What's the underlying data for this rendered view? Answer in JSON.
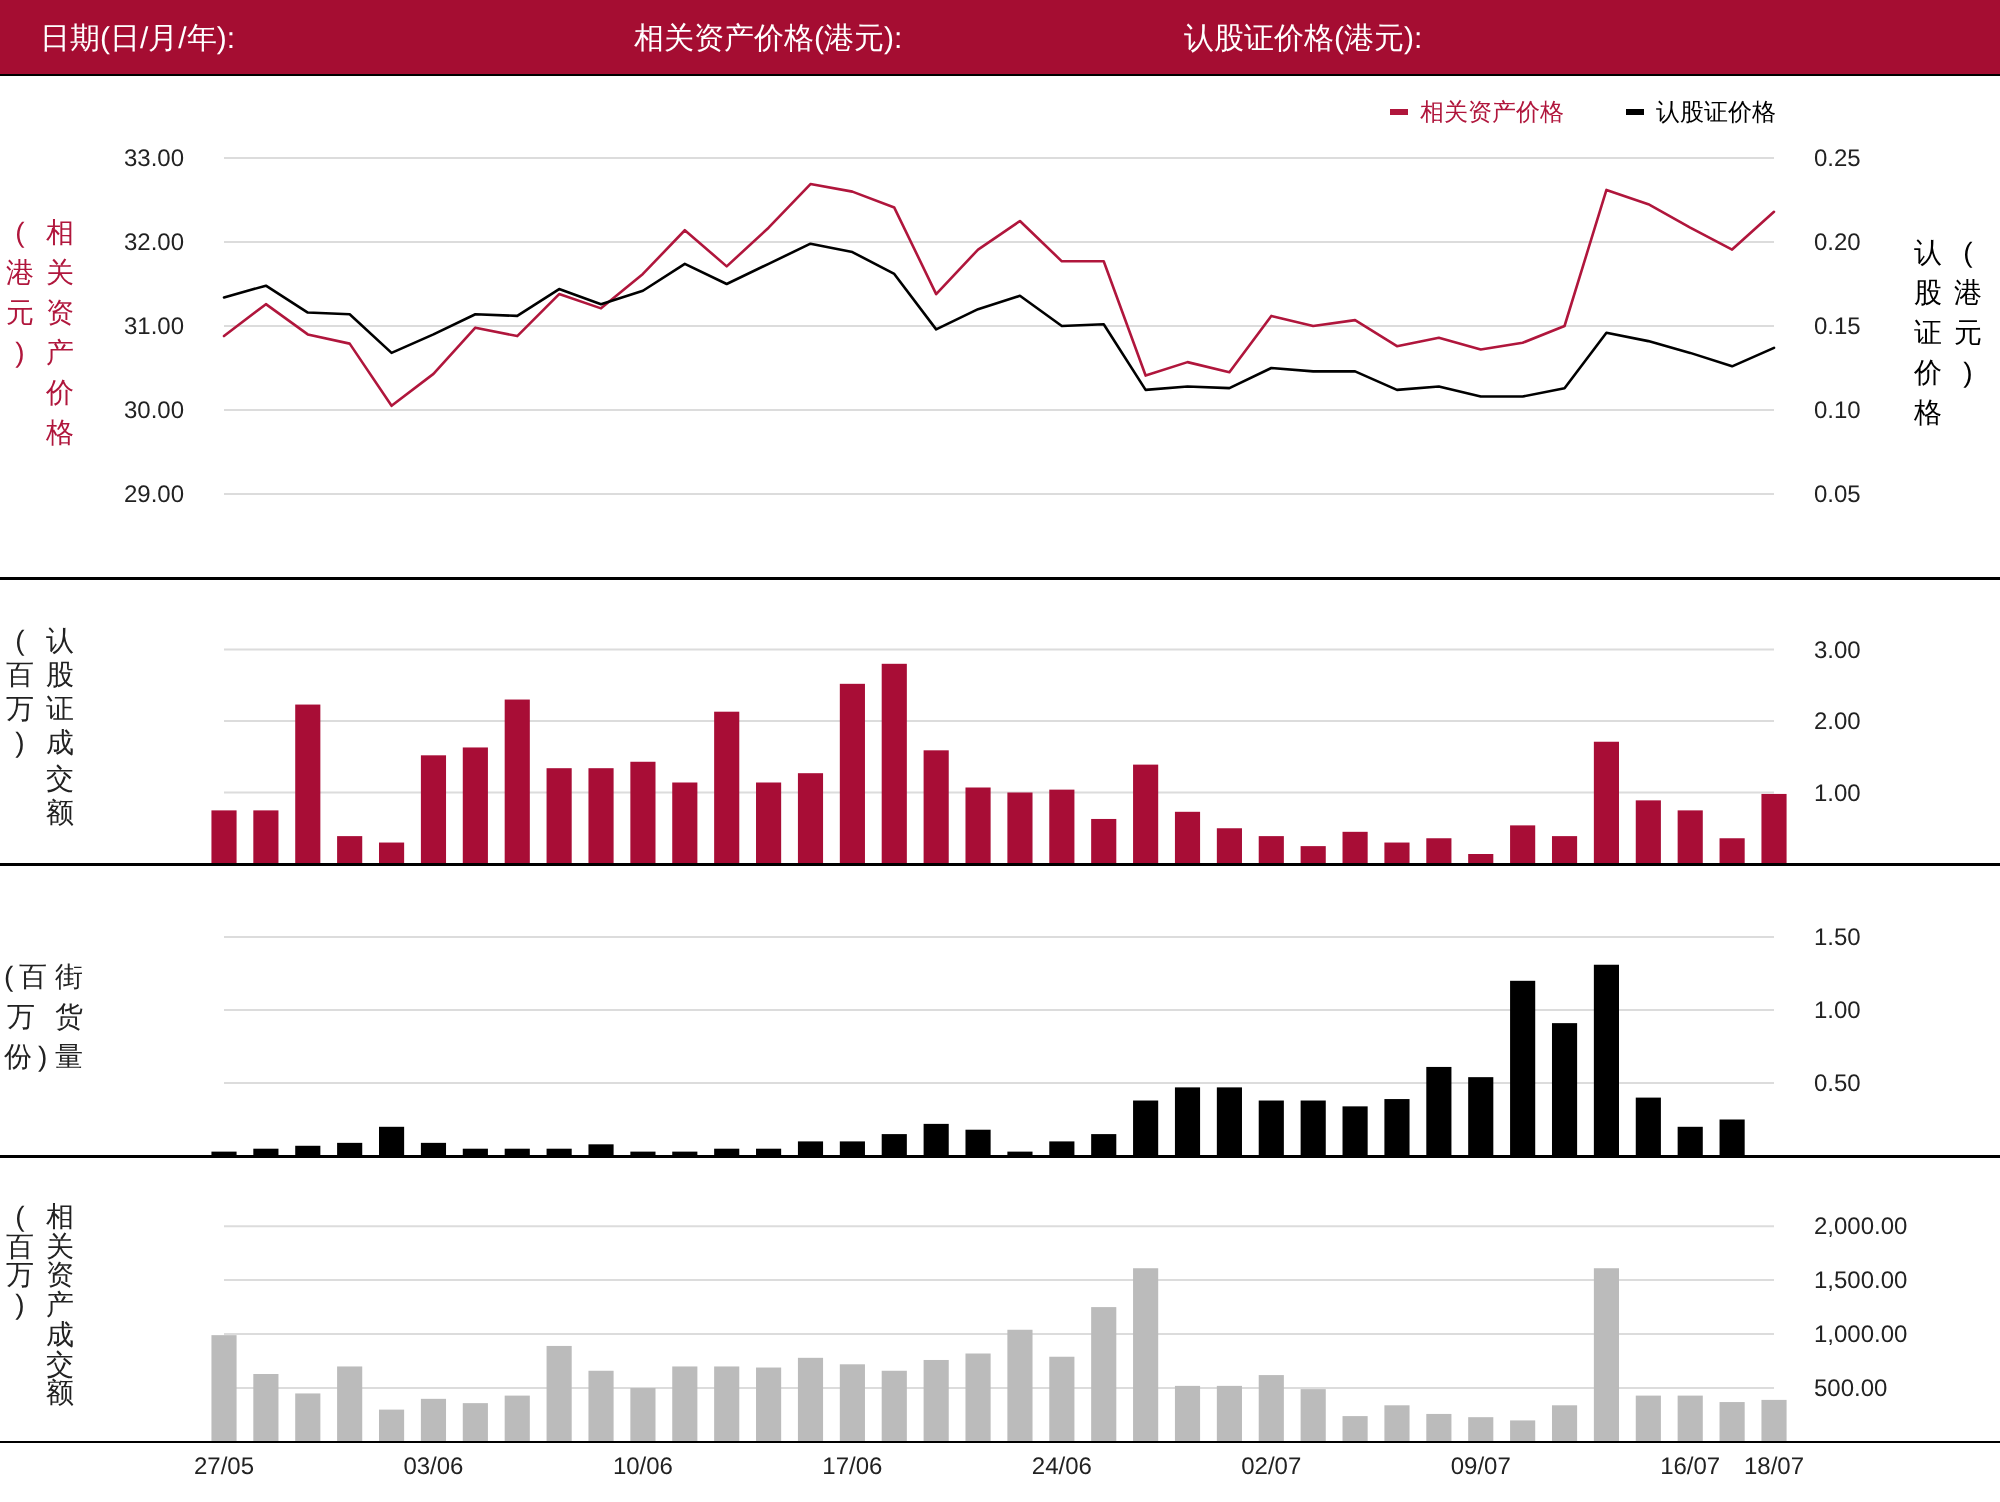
{
  "chart_data": [
    {
      "type": "line",
      "annotations": [
        "日期(日/月/年):",
        "相关资产价格(港元):",
        "认股证价格(港元):"
      ],
      "categories": [
        null,
        null,
        null,
        null,
        null,
        null,
        null,
        null,
        null,
        null,
        null,
        null,
        null,
        null,
        null,
        null,
        null,
        null,
        null,
        null,
        null,
        null,
        null,
        null,
        null,
        null,
        null,
        null,
        null,
        null,
        null,
        null,
        null,
        null,
        null,
        null,
        null,
        null
      ],
      "ylabel": "相关资产价格(港元)",
      "y2label": "认股证价格(港元)",
      "series": [
        {
          "name": "相关资产价格",
          "color": "#b0163c",
          "values": [
            30.88,
            31.26,
            30.9,
            30.79,
            30.05,
            30.43,
            30.98,
            30.88,
            31.38,
            31.21,
            31.62,
            32.14,
            31.71,
            32.17,
            32.69,
            32.6,
            32.41,
            31.38,
            31.91,
            32.25,
            31.77,
            31.77,
            30.41,
            30.57,
            30.45,
            31.12,
            31.0,
            31.07,
            30.76,
            30.86,
            30.72,
            30.8,
            31.0,
            32.62,
            32.45,
            32.17,
            31.91,
            32.36
          ]
        },
        {
          "name": "认股证价格",
          "color": "#000000",
          "axis": "y2",
          "values": [
            0.167,
            0.174,
            0.158,
            0.157,
            0.134,
            0.145,
            0.157,
            0.156,
            0.172,
            0.163,
            0.171,
            0.187,
            0.175,
            0.187,
            0.199,
            0.194,
            0.181,
            0.148,
            0.16,
            0.168,
            0.15,
            0.151,
            0.112,
            0.114,
            0.113,
            0.125,
            0.123,
            0.123,
            0.112,
            0.114,
            0.108,
            0.108,
            0.113,
            0.146,
            0.141,
            0.134,
            0.126,
            0.137
          ]
        }
      ],
      "ylim": [
        28,
        34
      ],
      "yticks": [
        {
          "value": 29,
          "label": "29.00"
        },
        {
          "value": 30,
          "label": "30.00"
        },
        {
          "value": 31,
          "label": "31.00"
        },
        {
          "value": 32,
          "label": "32.00"
        },
        {
          "value": 33,
          "label": "33.00"
        }
      ],
      "y2lim": [
        0,
        0.3
      ],
      "y2ticks": [
        0.05,
        {
          "value": 0.1,
          "label": "0.10"
        },
        0.15,
        {
          "value": 0.2,
          "label": "0.20"
        },
        0.25
      ],
      "grid": "y",
      "legend": "top right",
      "tick_labels": "y"
    },
    {
      "type": "bar",
      "categories": [
        null,
        null,
        null,
        null,
        null,
        null,
        null,
        null,
        null,
        null,
        null,
        null,
        null,
        null,
        null,
        null,
        null,
        null,
        null,
        null,
        null,
        null,
        null,
        null,
        null,
        null,
        null,
        null,
        null,
        null,
        null,
        null,
        null,
        null,
        null,
        null,
        null,
        null
      ],
      "ylabel": "认股证成交额(百万)",
      "color": "#a80d36",
      "values": [
        0.75,
        0.75,
        2.23,
        0.39,
        0.3,
        1.52,
        1.63,
        2.3,
        1.34,
        1.34,
        1.43,
        1.14,
        2.13,
        1.14,
        1.27,
        2.52,
        2.8,
        1.59,
        1.07,
        1.0,
        1.04,
        0.63,
        1.39,
        0.73,
        0.5,
        0.39,
        0.25,
        0.45,
        0.3,
        0.36,
        0.14,
        0.54,
        0.39,
        1.71,
        0.89,
        0.75,
        0.36,
        0.98
      ],
      "ylim": [
        0,
        4
      ],
      "yticks": [
        {
          "value": 1,
          "label": "1.00"
        },
        {
          "value": 2,
          "label": "2.00"
        },
        {
          "value": 3,
          "label": "3.00"
        }
      ],
      "grid": "y",
      "tick_labels": "y"
    },
    {
      "type": "bar",
      "categories": [
        null,
        null,
        null,
        null,
        null,
        null,
        null,
        null,
        null,
        null,
        null,
        null,
        null,
        null,
        null,
        null,
        null,
        null,
        null,
        null,
        null,
        null,
        null,
        null,
        null,
        null,
        null,
        null,
        null,
        null,
        null,
        null,
        null,
        null,
        null,
        null,
        null,
        null
      ],
      "ylabel": "街货量(百万份)",
      "color": "#000000",
      "values": [
        0.03,
        0.05,
        0.07,
        0.09,
        0.2,
        0.09,
        0.05,
        0.05,
        0.05,
        0.08,
        0.03,
        0.03,
        0.05,
        0.05,
        0.1,
        0.1,
        0.15,
        0.22,
        0.18,
        0.03,
        0.1,
        0.15,
        0.38,
        0.47,
        0.47,
        0.38,
        0.38,
        0.34,
        0.39,
        0.61,
        0.54,
        1.2,
        0.91,
        1.31,
        0.4,
        0.2,
        0.25,
        null
      ],
      "ylim": [
        0,
        2
      ],
      "yticks": [
        {
          "value": 0.5,
          "label": "0.50"
        },
        {
          "value": 1,
          "label": "1.00"
        },
        {
          "value": 1.5,
          "label": "1.50"
        }
      ],
      "grid": "y",
      "tick_labels": "y"
    },
    {
      "type": "bar",
      "categories": [
        "27/05",
        null,
        null,
        null,
        null,
        "03/06",
        null,
        null,
        null,
        null,
        "10/06",
        null,
        null,
        null,
        null,
        "17/06",
        null,
        null,
        null,
        null,
        "24/06",
        null,
        null,
        null,
        null,
        "02/07",
        null,
        null,
        null,
        null,
        "09/07",
        null,
        null,
        null,
        null,
        "16/07",
        null,
        "18/07"
      ],
      "ylabel": "相关资产成交额(百万)",
      "color": "#bbbbbb",
      "values": [
        990,
        630,
        450,
        700,
        300,
        400,
        360,
        430,
        890,
        660,
        500,
        700,
        700,
        690,
        780,
        720,
        660,
        760,
        820,
        1040,
        790,
        1250,
        1610,
        520,
        520,
        620,
        490,
        240,
        340,
        260,
        230,
        200,
        340,
        1610,
        430,
        430,
        370,
        390
      ],
      "ylim": [
        0,
        2650
      ],
      "yticks": [
        {
          "value": 500,
          "label": "500.00"
        },
        {
          "value": 1000,
          "label": "1,000.00"
        },
        {
          "value": 1500,
          "label": "1,500.00"
        },
        {
          "value": 2000,
          "label": "2,000.00"
        }
      ],
      "grid": "y"
    }
  ]
}
